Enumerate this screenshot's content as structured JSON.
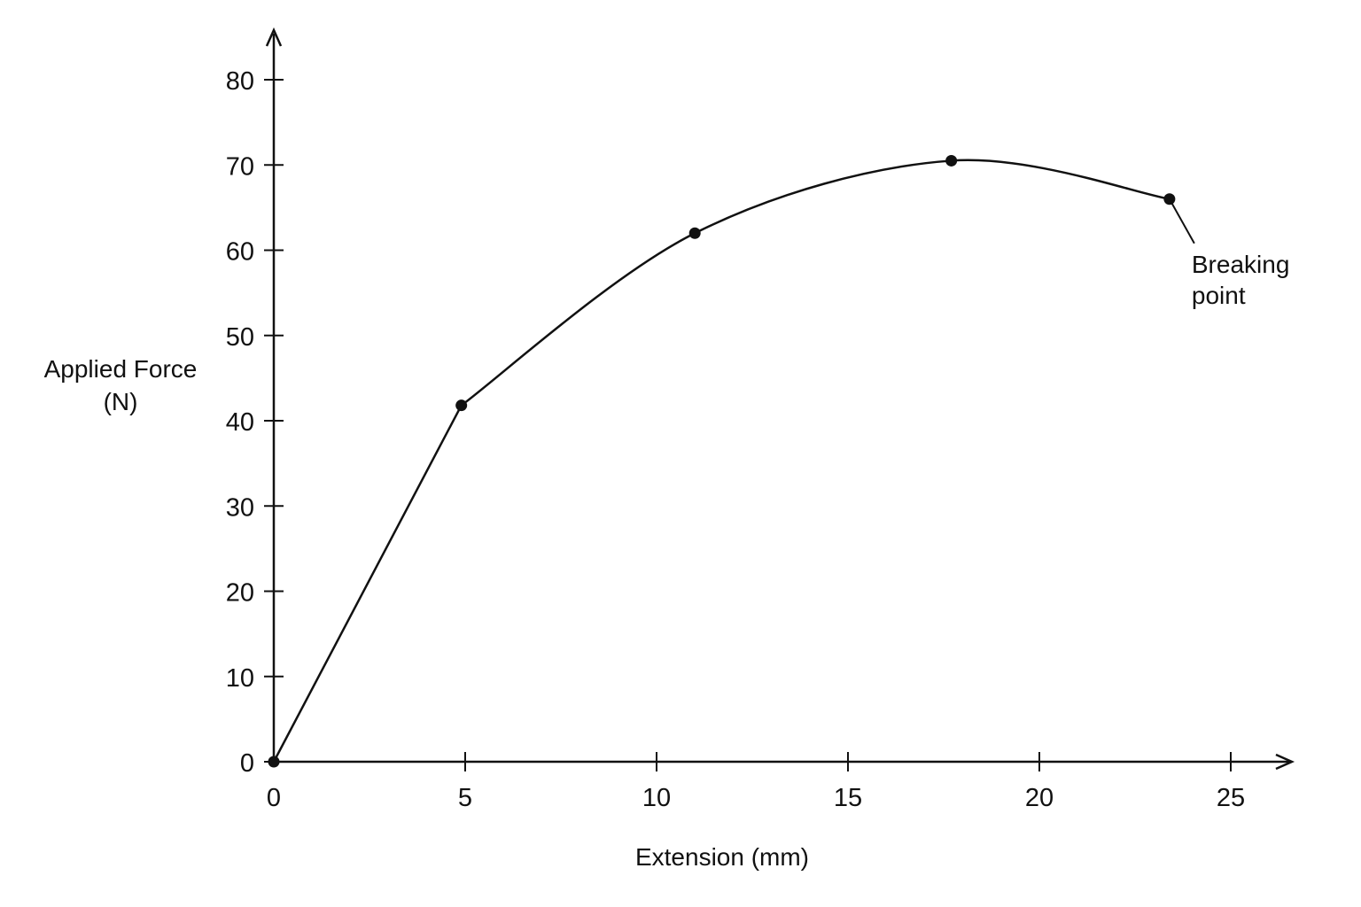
{
  "chart_data": {
    "type": "line",
    "xlabel": "Extension (mm)",
    "ylabel_lines": [
      "Applied Force",
      "(N)"
    ],
    "xlim": [
      0,
      25
    ],
    "ylim": [
      0,
      80
    ],
    "xticks": [
      0,
      5,
      10,
      15,
      20,
      25
    ],
    "yticks": [
      0,
      10,
      20,
      30,
      40,
      50,
      60,
      70,
      80
    ],
    "grid": false,
    "series": [
      {
        "x": [
          0,
          4.9,
          11.0,
          17.7,
          23.4
        ],
        "y": [
          0,
          41.8,
          62.0,
          70.5,
          66.0
        ]
      }
    ],
    "annotations": [
      {
        "text_lines": [
          "Breaking",
          "point"
        ],
        "x": 23.4,
        "y": 66.0
      }
    ],
    "colors": {
      "line": "#111111",
      "background": "#ffffff"
    }
  }
}
